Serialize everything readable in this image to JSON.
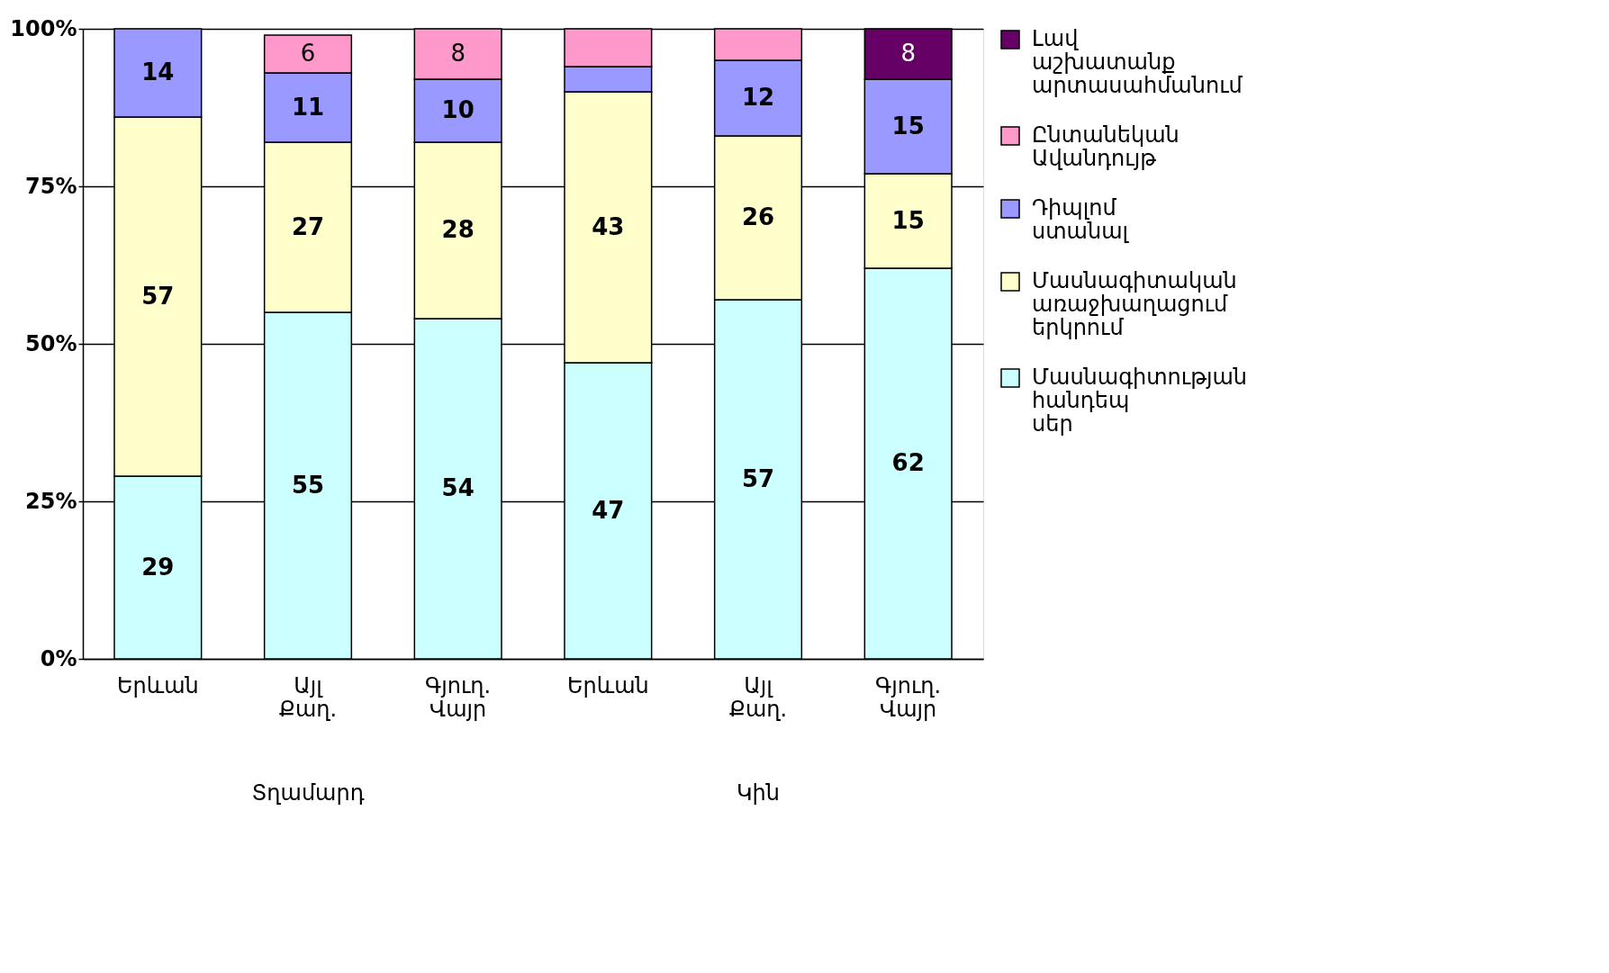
{
  "chart_data": {
    "type": "bar",
    "stacked": true,
    "categories": [
      "Երևան",
      "Այլ Քաղ.",
      "Գյուղ. Վայր",
      "Երևան",
      "Այլ Քաղ.",
      "Գյուղ. Վայր"
    ],
    "series": [
      {
        "name": "Մասնագիտության հանդեպ սեր",
        "color": "#ccffff",
        "values": [
          29,
          55,
          54,
          47,
          57,
          62
        ],
        "value_labels": [
          "29",
          "55",
          "54",
          "47",
          "57",
          "62"
        ]
      },
      {
        "name": "Մասնագիտական առաջխաղացում երկրում",
        "color": "#ffffcc",
        "values": [
          57,
          27,
          28,
          43,
          26,
          15
        ],
        "value_labels": [
          "57",
          "27",
          "28",
          "43",
          "26",
          "15"
        ]
      },
      {
        "name": "Դիպլոմ ստանալ",
        "color": "#9999ff",
        "values": [
          14,
          11,
          10,
          4,
          12,
          15
        ],
        "value_labels": [
          "14",
          "11",
          "10",
          null,
          "12",
          "15"
        ]
      },
      {
        "name": "Ընտանեկան Ավանդույթ",
        "color": "#ff99cc",
        "values": [
          null,
          6,
          8,
          6,
          5,
          null
        ],
        "value_labels": [
          null,
          "6",
          "8",
          null,
          null,
          null
        ]
      },
      {
        "name": "Լավ աշխատանք արտասահմանում",
        "color": "#660066",
        "values": [
          null,
          null,
          null,
          null,
          null,
          8
        ],
        "value_labels": [
          null,
          null,
          null,
          null,
          null,
          "8"
        ]
      }
    ],
    "ylim": [
      0,
      100
    ],
    "yticks": [
      {
        "value": 0,
        "label": "0%"
      },
      {
        "value": 25,
        "label": "25%"
      },
      {
        "value": 50,
        "label": "50%"
      },
      {
        "value": 75,
        "label": "75%"
      },
      {
        "value": 100,
        "label": "100%"
      }
    ],
    "grid": "y",
    "legend": "right",
    "annotations": [
      "Տղամարդ",
      "Կին"
    ]
  }
}
